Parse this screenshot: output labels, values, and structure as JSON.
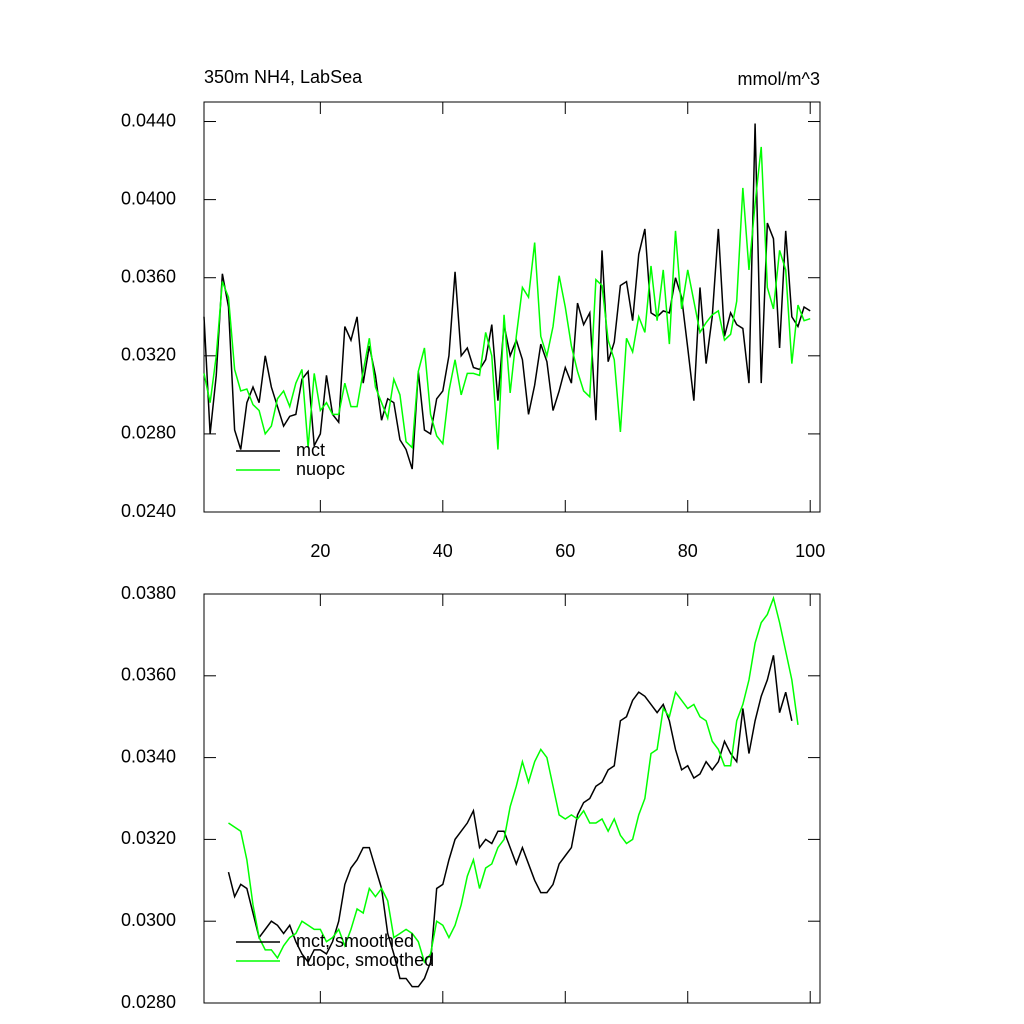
{
  "chart_data": [
    {
      "type": "line",
      "title": "350m NH4, LabSea",
      "subtitle": "mmol/m^3",
      "x": [
        1,
        2,
        3,
        4,
        5,
        6,
        7,
        8,
        9,
        10,
        11,
        12,
        13,
        14,
        15,
        16,
        17,
        18,
        19,
        20,
        21,
        22,
        23,
        24,
        25,
        26,
        27,
        28,
        29,
        30,
        31,
        32,
        33,
        34,
        35,
        36,
        37,
        38,
        39,
        40,
        41,
        42,
        43,
        44,
        45,
        46,
        47,
        48,
        49,
        50,
        51,
        52,
        53,
        54,
        55,
        56,
        57,
        58,
        59,
        60,
        61,
        62,
        63,
        64,
        65,
        66,
        67,
        68,
        69,
        70,
        71,
        72,
        73,
        74,
        75,
        76,
        77,
        78,
        79,
        80,
        81,
        82,
        83,
        84,
        85,
        86,
        87,
        88,
        89,
        90,
        91,
        92,
        93,
        94,
        95,
        96,
        97,
        98,
        99,
        100
      ],
      "series": [
        {
          "name": "mct",
          "color": "#000000",
          "values": [
            0.034,
            0.028,
            0.031,
            0.0362,
            0.0345,
            0.0282,
            0.0272,
            0.0296,
            0.0304,
            0.0296,
            0.032,
            0.0304,
            0.0294,
            0.0284,
            0.0289,
            0.029,
            0.0308,
            0.0312,
            0.0274,
            0.028,
            0.031,
            0.029,
            0.0286,
            0.0335,
            0.0328,
            0.034,
            0.0306,
            0.0325,
            0.031,
            0.0287,
            0.0298,
            0.0296,
            0.0277,
            0.0272,
            0.0262,
            0.0312,
            0.0282,
            0.028,
            0.0298,
            0.0302,
            0.032,
            0.0363,
            0.032,
            0.0324,
            0.0314,
            0.0313,
            0.0318,
            0.0336,
            0.0297,
            0.0336,
            0.032,
            0.0328,
            0.0318,
            0.029,
            0.0305,
            0.0326,
            0.0317,
            0.0292,
            0.0302,
            0.0314,
            0.0306,
            0.0347,
            0.0336,
            0.0342,
            0.0287,
            0.0374,
            0.0317,
            0.0327,
            0.0356,
            0.0358,
            0.0338,
            0.0372,
            0.0385,
            0.0342,
            0.034,
            0.0343,
            0.0342,
            0.036,
            0.035,
            0.0324,
            0.0297,
            0.0355,
            0.0316,
            0.034,
            0.0385,
            0.033,
            0.0342,
            0.0336,
            0.0334,
            0.0306,
            0.0439,
            0.0306,
            0.0388,
            0.038,
            0.0324,
            0.0384,
            0.034,
            0.0335,
            0.0345,
            0.0343
          ]
        },
        {
          "name": "nuopc",
          "color": "#00ff00",
          "values": [
            0.0311,
            0.0296,
            0.032,
            0.0358,
            0.035,
            0.0313,
            0.0302,
            0.0303,
            0.0295,
            0.0292,
            0.028,
            0.0284,
            0.0298,
            0.0302,
            0.0294,
            0.0306,
            0.0313,
            0.0273,
            0.0311,
            0.0292,
            0.0296,
            0.029,
            0.029,
            0.0306,
            0.0294,
            0.0294,
            0.0312,
            0.0329,
            0.0304,
            0.0296,
            0.0288,
            0.0308,
            0.03,
            0.0276,
            0.0273,
            0.0312,
            0.0324,
            0.029,
            0.0279,
            0.0275,
            0.0302,
            0.0318,
            0.03,
            0.0311,
            0.0311,
            0.031,
            0.0332,
            0.032,
            0.0272,
            0.0341,
            0.0301,
            0.033,
            0.0355,
            0.035,
            0.0378,
            0.033,
            0.032,
            0.0335,
            0.0361,
            0.0345,
            0.0325,
            0.0312,
            0.0302,
            0.0299,
            0.0359,
            0.0356,
            0.0328,
            0.0318,
            0.0281,
            0.0329,
            0.0322,
            0.034,
            0.0332,
            0.0366,
            0.0338,
            0.0364,
            0.0326,
            0.0384,
            0.0344,
            0.0364,
            0.0348,
            0.0332,
            0.0337,
            0.0341,
            0.0343,
            0.0328,
            0.0331,
            0.0348,
            0.0406,
            0.0364,
            0.0398,
            0.0427,
            0.0355,
            0.0344,
            0.0374,
            0.0364,
            0.0316,
            0.0346,
            0.0338,
            0.0339
          ]
        }
      ],
      "xlim": [
        1,
        101.6
      ],
      "xticks": [
        20,
        40,
        60,
        80,
        100
      ],
      "ylim": [
        0.024,
        0.045
      ],
      "yticks": [
        {
          "value": 0.024,
          "label": "0.0240"
        },
        {
          "value": 0.028,
          "label": "0.0280"
        },
        {
          "value": 0.032,
          "label": "0.0320"
        },
        {
          "value": 0.036,
          "label": "0.0360"
        },
        {
          "value": 0.04,
          "label": "0.0400"
        },
        {
          "value": 0.044,
          "label": "0.0440"
        }
      ],
      "legend": "lower left"
    },
    {
      "type": "line",
      "x": [
        1,
        2,
        3,
        4,
        5,
        6,
        7,
        8,
        9,
        10,
        11,
        12,
        13,
        14,
        15,
        16,
        17,
        18,
        19,
        20,
        21,
        22,
        23,
        24,
        25,
        26,
        27,
        28,
        29,
        30,
        31,
        32,
        33,
        34,
        35,
        36,
        37,
        38,
        39,
        40,
        41,
        42,
        43,
        44,
        45,
        46,
        47,
        48,
        49,
        50,
        51,
        52,
        53,
        54,
        55,
        56,
        57,
        58,
        59,
        60,
        61,
        62,
        63,
        64,
        65,
        66,
        67,
        68,
        69,
        70,
        71,
        72,
        73,
        74,
        75,
        76,
        77,
        78,
        79,
        80,
        81,
        82,
        83,
        84,
        85,
        86,
        87,
        88,
        89,
        90,
        91,
        92,
        93,
        94,
        95,
        96,
        97,
        98,
        99,
        100
      ],
      "series": [
        {
          "name": "mct, smoothed",
          "color": "#000000",
          "values": [
            null,
            null,
            null,
            null,
            0.0312,
            0.0306,
            0.0309,
            0.0308,
            0.0302,
            0.0296,
            0.0298,
            0.03,
            0.0299,
            0.0297,
            0.0299,
            0.0295,
            0.0292,
            0.029,
            0.0293,
            0.0293,
            0.0292,
            0.0295,
            0.03,
            0.0309,
            0.0313,
            0.0315,
            0.0318,
            0.0318,
            0.0313,
            0.0308,
            0.0297,
            0.0292,
            0.0286,
            0.0286,
            0.0284,
            0.0284,
            0.0286,
            0.029,
            0.0308,
            0.0309,
            0.0315,
            0.032,
            0.0322,
            0.0324,
            0.0327,
            0.0318,
            0.032,
            0.0319,
            0.0322,
            0.0322,
            0.0318,
            0.0314,
            0.0318,
            0.0314,
            0.031,
            0.0307,
            0.0307,
            0.0309,
            0.0314,
            0.0316,
            0.0318,
            0.0326,
            0.0329,
            0.033,
            0.0333,
            0.0334,
            0.0337,
            0.0338,
            0.0349,
            0.035,
            0.0354,
            0.0356,
            0.0355,
            0.0353,
            0.0351,
            0.0353,
            0.0349,
            0.0342,
            0.0337,
            0.0338,
            0.0335,
            0.0336,
            0.0339,
            0.0337,
            0.0339,
            0.0344,
            0.0341,
            0.0339,
            0.0352,
            0.0341,
            0.0349,
            0.0355,
            0.0359,
            0.0365,
            0.0351,
            0.0356,
            0.0349,
            null,
            null,
            null
          ]
        },
        {
          "name": "nuopc, smoothed",
          "color": "#00ff00",
          "values": [
            null,
            null,
            null,
            null,
            0.0324,
            0.0323,
            0.0322,
            0.0315,
            0.0304,
            0.0296,
            0.0293,
            0.0293,
            0.0291,
            0.0294,
            0.0296,
            0.0297,
            0.03,
            0.0299,
            0.0298,
            0.0298,
            0.0295,
            0.0296,
            0.0298,
            0.0294,
            0.0298,
            0.0303,
            0.0302,
            0.0308,
            0.0306,
            0.0308,
            0.0305,
            0.0296,
            0.0297,
            0.0298,
            0.0297,
            0.0295,
            0.029,
            0.0292,
            0.03,
            0.0299,
            0.0296,
            0.0299,
            0.0304,
            0.0311,
            0.0315,
            0.0308,
            0.0313,
            0.0314,
            0.0318,
            0.032,
            0.0328,
            0.0333,
            0.0339,
            0.0334,
            0.0339,
            0.0342,
            0.034,
            0.0333,
            0.0326,
            0.0325,
            0.0326,
            0.0325,
            0.0327,
            0.0324,
            0.0324,
            0.0325,
            0.0322,
            0.0325,
            0.0321,
            0.0319,
            0.032,
            0.0326,
            0.033,
            0.0341,
            0.0342,
            0.0352,
            0.035,
            0.0356,
            0.0354,
            0.0352,
            0.0353,
            0.035,
            0.0349,
            0.0344,
            0.0342,
            0.0338,
            0.0338,
            0.0349,
            0.0353,
            0.0359,
            0.0368,
            0.0373,
            0.0375,
            0.0379,
            0.0373,
            0.0366,
            0.0359,
            0.0348,
            null,
            null
          ]
        }
      ],
      "xlim": [
        1,
        101.6
      ],
      "xticks": [
        20,
        40,
        60,
        80,
        100
      ],
      "ylim": [
        0.028,
        0.038
      ],
      "yticks": [
        {
          "value": 0.028,
          "label": "0.0280"
        },
        {
          "value": 0.03,
          "label": "0.0300"
        },
        {
          "value": 0.032,
          "label": "0.0320"
        },
        {
          "value": 0.034,
          "label": "0.0340"
        },
        {
          "value": 0.036,
          "label": "0.0360"
        },
        {
          "value": 0.038,
          "label": "0.0380"
        }
      ],
      "legend": "lower left"
    }
  ]
}
